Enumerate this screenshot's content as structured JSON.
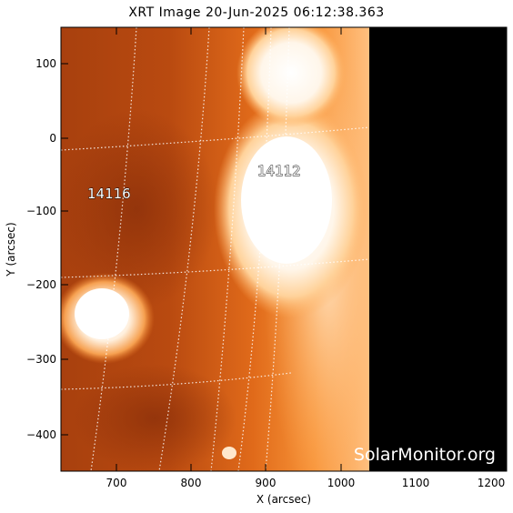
{
  "title": "XRT Image 20-Jun-2025 06:12:38.363",
  "x_axis": {
    "label": "X (arcsec)",
    "ticks": [
      "700",
      "800",
      "900",
      "1000",
      "1100",
      "1200"
    ]
  },
  "y_axis": {
    "label": "Y (arcsec)",
    "ticks": [
      "100",
      "0",
      "−100",
      "−200",
      "−300",
      "−400"
    ]
  },
  "regions": [
    {
      "id": "14116"
    },
    {
      "id": "14112"
    }
  ],
  "watermark": "SolarMonitor.org",
  "colors": {
    "background": "#ffffff",
    "sky": "#000000",
    "disk_dark": "#a43c0c",
    "disk_mid": "#e06818",
    "disk_bright": "#ffb060",
    "active_region": "#ffffff"
  }
}
